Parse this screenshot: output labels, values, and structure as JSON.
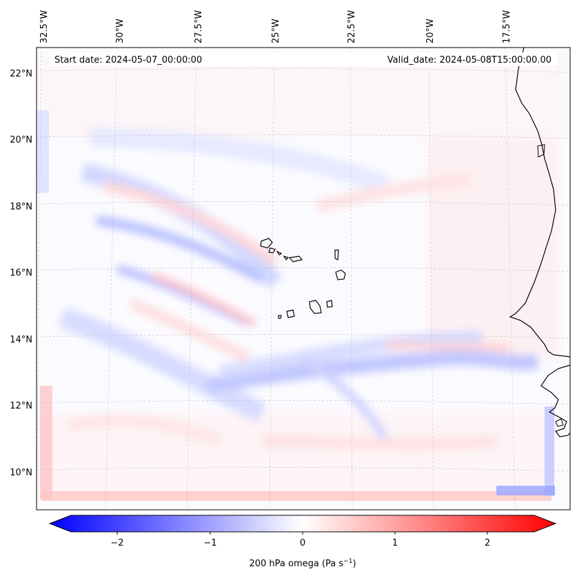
{
  "header": {
    "start_date": "Start date: 2024-05-07_00:00:00",
    "valid_date": "Valid_date: 2024-05-08T15:00:00.00"
  },
  "axes": {
    "lon_labels": [
      "32.5°W",
      "30°W",
      "27.5°W",
      "25°W",
      "22.5°W",
      "20°W",
      "17.5°W"
    ],
    "lat_labels": [
      "22°N",
      "20°N",
      "18°N",
      "16°N",
      "14°N",
      "12°N",
      "10°N"
    ]
  },
  "colorbar": {
    "ticks": [
      "−2",
      "−1",
      "0",
      "1",
      "2"
    ],
    "label": "200 hPa omega (Pa s",
    "label_sup": "−1",
    "label_close": ")",
    "range": [
      -2.6,
      2.6
    ]
  },
  "colors": {
    "negative": "#0000ff",
    "positive": "#ff0000",
    "neutral": "#ffffff",
    "coastline": "#000000"
  }
}
